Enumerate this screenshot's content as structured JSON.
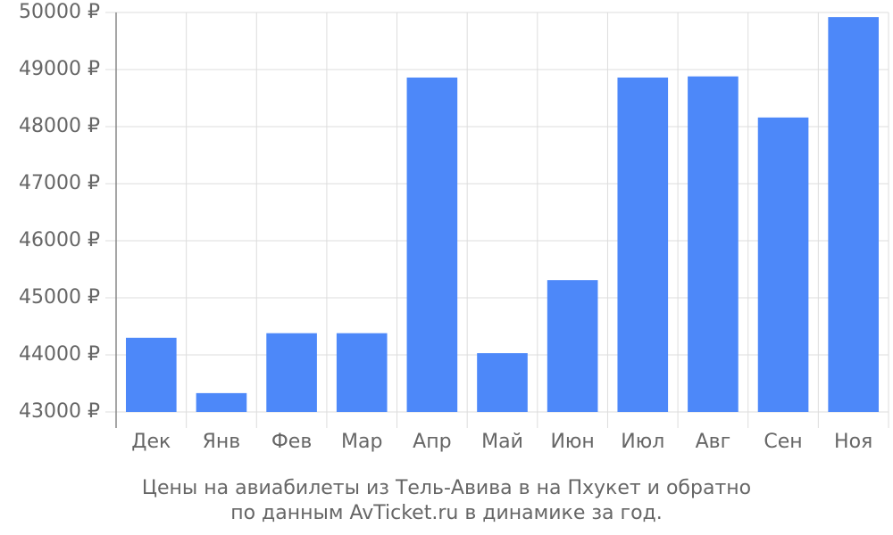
{
  "chart_data": {
    "type": "bar",
    "caption_lines": [
      "Цены на авиабилеты из Тель-Авива в на Пхукет и обратно",
      "по данным AvTicket.ru в динамике за год."
    ],
    "categories": [
      "Дек",
      "Янв",
      "Фев",
      "Мар",
      "Апр",
      "Май",
      "Июн",
      "Июл",
      "Авг",
      "Сен",
      "Ноя"
    ],
    "values": [
      44300,
      43330,
      44380,
      44380,
      48860,
      44030,
      45310,
      48860,
      48880,
      48160,
      49920
    ],
    "color": "#4d88f9",
    "ylim": [
      43000,
      50000
    ],
    "yticks": [
      {
        "value": 43000,
        "label": "43000 ₽"
      },
      {
        "value": 44000,
        "label": "44000 ₽"
      },
      {
        "value": 45000,
        "label": "45000 ₽"
      },
      {
        "value": 46000,
        "label": "46000 ₽"
      },
      {
        "value": 47000,
        "label": "47000 ₽"
      },
      {
        "value": 48000,
        "label": "48000 ₽"
      },
      {
        "value": 49000,
        "label": "49000 ₽"
      },
      {
        "value": 50000,
        "label": "50000 ₽"
      }
    ],
    "grid": true
  }
}
